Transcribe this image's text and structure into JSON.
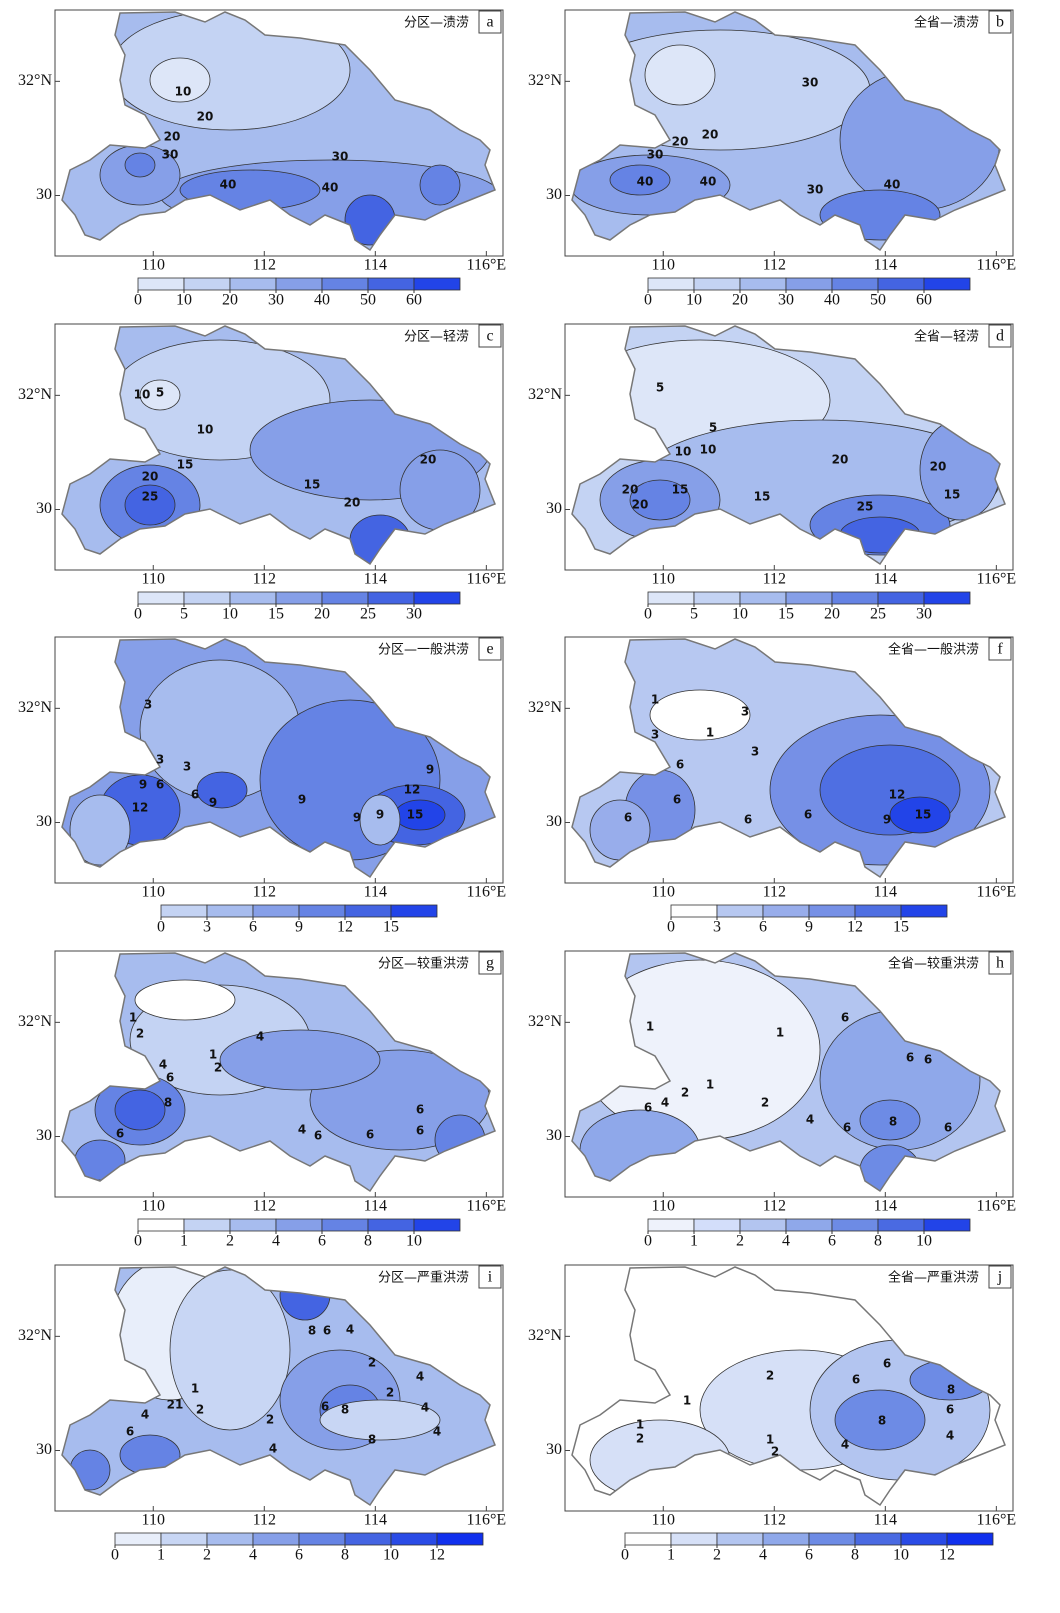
{
  "axes": {
    "lon_ticks": [
      110,
      112,
      114,
      {
        "value": 116,
        "label": "116°E"
      }
    ],
    "lat_ticks": [
      {
        "value": 32,
        "label": "32°N"
      },
      30
    ],
    "xlim": [
      108.23,
      116.3
    ],
    "ylim": [
      28.94,
      33.25
    ]
  },
  "panels": [
    {
      "label": "a",
      "title": "分区—渍涝",
      "colorbar": {
        "ticks": [
          0,
          10,
          20,
          30,
          40,
          50,
          60
        ],
        "colors": [
          "#dde6f8",
          "#c4d3f3",
          "#a7bcee",
          "#869fe8",
          "#6583e4",
          "#4464e2",
          "#2244e8"
        ]
      },
      "contour_labels": [
        "10",
        "20",
        "20",
        "30",
        "30",
        "40",
        "40"
      ]
    },
    {
      "label": "b",
      "title": "全省—渍涝",
      "colorbar": {
        "ticks": [
          0,
          10,
          20,
          30,
          40,
          50,
          60
        ],
        "colors": [
          "#dde6f8",
          "#c4d3f3",
          "#a7bcee",
          "#869fe8",
          "#6583e4",
          "#4464e2",
          "#2244e8"
        ]
      },
      "contour_labels": [
        "30",
        "20",
        "20",
        "30",
        "40",
        "40",
        "30",
        "40"
      ]
    },
    {
      "label": "c",
      "title": "分区—轻涝",
      "colorbar": {
        "ticks": [
          0,
          5,
          10,
          15,
          20,
          25,
          30
        ],
        "colors": [
          "#dde6f8",
          "#c4d3f3",
          "#a7bcee",
          "#869fe8",
          "#6583e4",
          "#4464e2",
          "#2244e8"
        ]
      },
      "contour_labels": [
        "5",
        "10",
        "10",
        "15",
        "20",
        "25",
        "15",
        "20",
        "20"
      ]
    },
    {
      "label": "d",
      "title": "全省—轻涝",
      "colorbar": {
        "ticks": [
          0,
          5,
          10,
          15,
          20,
          25,
          30
        ],
        "colors": [
          "#dde6f8",
          "#c4d3f3",
          "#a7bcee",
          "#869fe8",
          "#6583e4",
          "#4464e2",
          "#2244e8"
        ]
      },
      "contour_labels": [
        "5",
        "5",
        "10",
        "10",
        "20",
        "20",
        "20",
        "15",
        "20",
        "15",
        "25",
        "15"
      ]
    },
    {
      "label": "e",
      "title": "分区—一般洪涝",
      "colorbar": {
        "ticks": [
          0,
          3,
          6,
          9,
          12,
          15
        ],
        "colors": [
          "#c4d3f3",
          "#a7bcee",
          "#869fe8",
          "#6583e4",
          "#4464e2",
          "#2244e8"
        ]
      },
      "contour_labels": [
        "3",
        "3",
        "3",
        "6",
        "6",
        "9",
        "9",
        "12",
        "9",
        "12",
        "9",
        "9",
        "9",
        "15"
      ]
    },
    {
      "label": "f",
      "title": "全省—一般洪涝",
      "colorbar": {
        "ticks": [
          0,
          3,
          6,
          9,
          12,
          15
        ],
        "colors": [
          "#ffffff",
          "#b7c8f1",
          "#98adeb",
          "#7690e6",
          "#4f6fe2",
          "#2244e8"
        ]
      },
      "contour_labels": [
        "1",
        "3",
        "1",
        "3",
        "3",
        "6",
        "6",
        "6",
        "6",
        "6",
        "9",
        "12",
        "15"
      ]
    },
    {
      "label": "g",
      "title": "分区—较重洪涝",
      "colorbar": {
        "ticks": [
          0,
          1,
          2,
          4,
          6,
          8,
          10
        ],
        "colors": [
          "#ffffff",
          "#c4d3f3",
          "#a7bcee",
          "#869fe8",
          "#6583e4",
          "#4464e2",
          "#2244e8"
        ]
      },
      "contour_labels": [
        "1",
        "2",
        "4",
        "1",
        "2",
        "4",
        "6",
        "8",
        "6",
        "4",
        "6",
        "6",
        "6",
        "6"
      ]
    },
    {
      "label": "h",
      "title": "全省—较重洪涝",
      "colorbar": {
        "ticks": [
          0,
          1,
          2,
          4,
          6,
          8,
          10
        ],
        "colors": [
          "#eef2fb",
          "#d3defa",
          "#b3c5f0",
          "#8fa8ea",
          "#6d8be5",
          "#4a6ae2",
          "#2244e8"
        ]
      },
      "contour_labels": [
        "1",
        "1",
        "6",
        "6",
        "6",
        "2",
        "1",
        "4",
        "6",
        "2",
        "4",
        "6",
        "8",
        "6"
      ]
    },
    {
      "label": "i",
      "title": "分区—严重洪涝",
      "colorbar": {
        "ticks": [
          0,
          1,
          2,
          4,
          6,
          8,
          10,
          12
        ],
        "colors": [
          "#e8eefa",
          "#c8d6f4",
          "#a7bcee",
          "#869fe8",
          "#6583e4",
          "#4464e2",
          "#2a4be6",
          "#1030ee"
        ]
      },
      "contour_labels": [
        "8",
        "6",
        "4",
        "2",
        "2",
        "4",
        "1",
        "2",
        "21",
        "4",
        "6",
        "2",
        "4",
        "6",
        "8",
        "8",
        "4",
        "4"
      ]
    },
    {
      "label": "j",
      "title": "全省—严重洪涝",
      "colorbar": {
        "ticks": [
          0,
          1,
          2,
          4,
          6,
          8,
          10,
          12
        ],
        "colors": [
          "#ffffff",
          "#d6e0f7",
          "#b3c5f0",
          "#8fa8ea",
          "#6d8be5",
          "#4a6ae2",
          "#2a4be6",
          "#1030ee"
        ]
      },
      "contour_labels": [
        "2",
        "1",
        "6",
        "6",
        "8",
        "6",
        "8",
        "4",
        "4",
        "1",
        "2",
        "1",
        "2"
      ]
    }
  ]
}
